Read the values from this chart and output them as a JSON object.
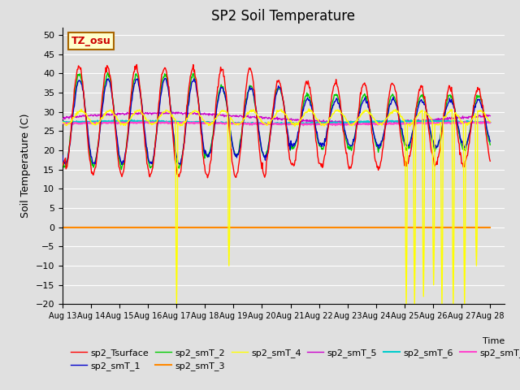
{
  "title": "SP2 Soil Temperature",
  "ylabel": "Soil Temperature (C)",
  "ylim": [
    -20,
    52
  ],
  "yticks": [
    -20,
    -15,
    -10,
    -5,
    0,
    5,
    10,
    15,
    20,
    25,
    30,
    35,
    40,
    45,
    50
  ],
  "x_tick_labels": [
    "Aug 13",
    "Aug 14",
    "Aug 15",
    "Aug 16",
    "Aug 17",
    "Aug 18",
    "Aug 19",
    "Aug 20",
    "Aug 21",
    "Aug 22",
    "Aug 23",
    "Aug 24",
    "Aug 25",
    "Aug 26",
    "Aug 27",
    "Aug 28"
  ],
  "series_colors": {
    "sp2_Tsurface": "#ff0000",
    "sp2_smT_1": "#0000cc",
    "sp2_smT_2": "#00cc00",
    "sp2_smT_3": "#ff8800",
    "sp2_smT_4": "#ffff00",
    "sp2_smT_5": "#cc00cc",
    "sp2_smT_6": "#00cccc",
    "sp2_smT_7": "#ff44cc"
  },
  "fig_bg": "#e0e0e0",
  "plot_bg": "#e0e0e0",
  "grid_color": "#ffffff",
  "tz_box_bg": "#ffffcc",
  "tz_box_border": "#aa6600",
  "tz_text_color": "#cc0000"
}
